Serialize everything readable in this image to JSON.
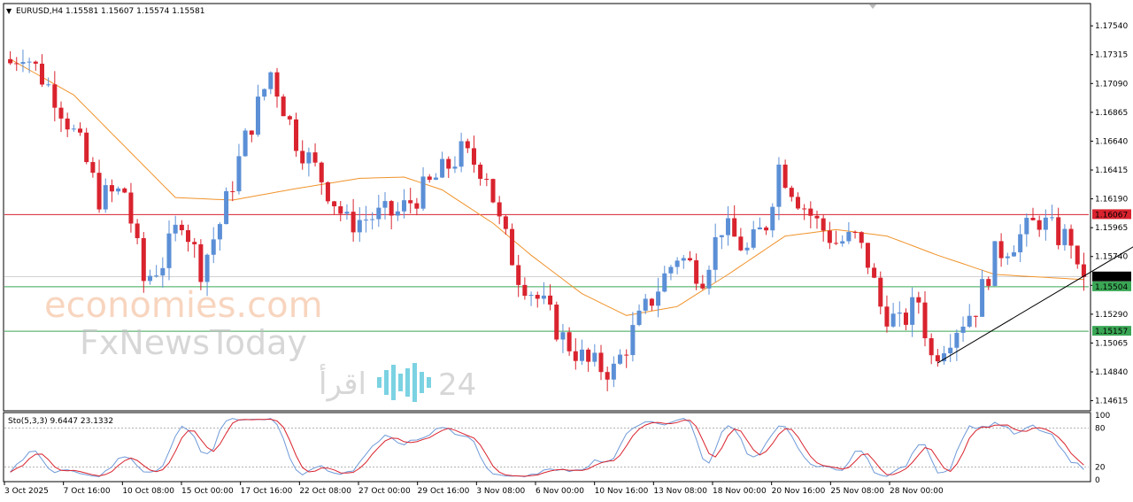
{
  "header": {
    "symbol_line": "EURUSD,H4  1.15581  1.15607  1.15574  1.15581"
  },
  "stochastic": {
    "label": "Sto(5,3,3) 9.6447 23.1332",
    "axis_labels": [
      "100",
      "80",
      "20",
      "0"
    ],
    "levels": [
      80,
      20
    ],
    "main_color": "#6f9ad8",
    "signal_color": "#d9232e"
  },
  "colors": {
    "bull": "#5b8fd6",
    "bear": "#d9232e",
    "ma": "#f0932b",
    "resistance": "#d9232e",
    "support": "#3aa655",
    "current": "#000000",
    "trendline": "#000000"
  },
  "watermarks": {
    "line1": "economies.com",
    "line2": "FxNewsToday",
    "line3": "اقرأ",
    "line4": "24"
  },
  "chart_data": {
    "type": "candlestick",
    "symbol": "EURUSD",
    "timeframe": "H4",
    "ohlc": {
      "open": 1.15581,
      "high": 1.15607,
      "low": 1.15574,
      "close": 1.15581
    },
    "ylim": [
      1.1455,
      1.177
    ],
    "y_ticks": [
      1.1754,
      1.17315,
      1.1709,
      1.16865,
      1.1664,
      1.16415,
      1.1619,
      1.15965,
      1.1574,
      1.15515,
      1.1529,
      1.15065,
      1.1484,
      1.14615
    ],
    "y_tick_labels": [
      "1.17540",
      "1.17315",
      "1.17090",
      "1.16865",
      "1.16640",
      "1.16415",
      "1.16190",
      "1.15965",
      "1.15740",
      "1.15515",
      "1.15290",
      "1.15065",
      "1.14840",
      "1.14615"
    ],
    "x_tick_labels": [
      "3 Oct 2025",
      "7 Oct 16:00",
      "10 Oct 08:00",
      "15 Oct 00:00",
      "17 Oct 16:00",
      "22 Oct 08:00",
      "27 Oct 00:00",
      "29 Oct 16:00",
      "3 Nov 08:00",
      "6 Nov 00:00",
      "10 Nov 16:00",
      "13 Nov 08:00",
      "18 Nov 00:00",
      "20 Nov 16:00",
      "25 Nov 08:00",
      "28 Nov 00:00"
    ],
    "horizontal_lines": [
      {
        "price": 1.16067,
        "label": "1.16067",
        "color": "#d9232e"
      },
      {
        "price": 1.15581,
        "label": "1.15581",
        "color": "#000000"
      },
      {
        "price": 1.15504,
        "label": "1.15504",
        "color": "#3aa655"
      },
      {
        "price": 1.15157,
        "label": "1.15157",
        "color": "#3aa655"
      }
    ],
    "trendline": {
      "from": {
        "bar": 146,
        "price": 1.1491
      },
      "to": {
        "bar": 181,
        "price": 1.1594
      }
    },
    "anchors": [
      {
        "bar": 0,
        "price": 1.172
      },
      {
        "bar": 3,
        "price": 1.1735
      },
      {
        "bar": 8,
        "price": 1.17
      },
      {
        "bar": 12,
        "price": 1.166
      },
      {
        "bar": 15,
        "price": 1.162
      },
      {
        "bar": 19,
        "price": 1.1625
      },
      {
        "bar": 22,
        "price": 1.1555
      },
      {
        "bar": 25,
        "price": 1.157
      },
      {
        "bar": 28,
        "price": 1.1605
      },
      {
        "bar": 31,
        "price": 1.1565
      },
      {
        "bar": 34,
        "price": 1.16
      },
      {
        "bar": 38,
        "price": 1.1665
      },
      {
        "bar": 42,
        "price": 1.1718
      },
      {
        "bar": 46,
        "price": 1.1665
      },
      {
        "bar": 50,
        "price": 1.1635
      },
      {
        "bar": 54,
        "price": 1.16
      },
      {
        "bar": 58,
        "price": 1.1605
      },
      {
        "bar": 62,
        "price": 1.1608
      },
      {
        "bar": 67,
        "price": 1.163
      },
      {
        "bar": 72,
        "price": 1.1655
      },
      {
        "bar": 76,
        "price": 1.164
      },
      {
        "bar": 78,
        "price": 1.16
      },
      {
        "bar": 81,
        "price": 1.156
      },
      {
        "bar": 85,
        "price": 1.1535
      },
      {
        "bar": 88,
        "price": 1.151
      },
      {
        "bar": 92,
        "price": 1.149
      },
      {
        "bar": 96,
        "price": 1.1485
      },
      {
        "bar": 99,
        "price": 1.1515
      },
      {
        "bar": 103,
        "price": 1.155
      },
      {
        "bar": 106,
        "price": 1.1575
      },
      {
        "bar": 110,
        "price": 1.156
      },
      {
        "bar": 113,
        "price": 1.1598
      },
      {
        "bar": 117,
        "price": 1.1578
      },
      {
        "bar": 120,
        "price": 1.16
      },
      {
        "bar": 122,
        "price": 1.1645
      },
      {
        "bar": 125,
        "price": 1.162
      },
      {
        "bar": 128,
        "price": 1.16
      },
      {
        "bar": 131,
        "price": 1.1585
      },
      {
        "bar": 134,
        "price": 1.1588
      },
      {
        "bar": 136,
        "price": 1.157
      },
      {
        "bar": 138,
        "price": 1.1535
      },
      {
        "bar": 141,
        "price": 1.152
      },
      {
        "bar": 144,
        "price": 1.154
      },
      {
        "bar": 146,
        "price": 1.1495
      },
      {
        "bar": 150,
        "price": 1.152
      },
      {
        "bar": 153,
        "price": 1.1535
      },
      {
        "bar": 156,
        "price": 1.1575
      },
      {
        "bar": 160,
        "price": 1.159
      },
      {
        "bar": 163,
        "price": 1.1603
      },
      {
        "bar": 166,
        "price": 1.159
      },
      {
        "bar": 168,
        "price": 1.1588
      },
      {
        "bar": 169,
        "price": 1.1558
      }
    ],
    "ma_anchors": [
      {
        "bar": 0,
        "price": 1.1728
      },
      {
        "bar": 10,
        "price": 1.17
      },
      {
        "bar": 18,
        "price": 1.166
      },
      {
        "bar": 26,
        "price": 1.162
      },
      {
        "bar": 35,
        "price": 1.1618
      },
      {
        "bar": 45,
        "price": 1.1627
      },
      {
        "bar": 55,
        "price": 1.1635
      },
      {
        "bar": 62,
        "price": 1.1636
      },
      {
        "bar": 68,
        "price": 1.1626
      },
      {
        "bar": 76,
        "price": 1.16
      },
      {
        "bar": 82,
        "price": 1.1575
      },
      {
        "bar": 90,
        "price": 1.1545
      },
      {
        "bar": 97,
        "price": 1.1528
      },
      {
        "bar": 105,
        "price": 1.1535
      },
      {
        "bar": 113,
        "price": 1.156
      },
      {
        "bar": 122,
        "price": 1.159
      },
      {
        "bar": 130,
        "price": 1.1595
      },
      {
        "bar": 138,
        "price": 1.159
      },
      {
        "bar": 146,
        "price": 1.1575
      },
      {
        "bar": 155,
        "price": 1.156
      },
      {
        "bar": 162,
        "price": 1.1558
      },
      {
        "bar": 169,
        "price": 1.1556
      }
    ],
    "bar_count": 170
  }
}
